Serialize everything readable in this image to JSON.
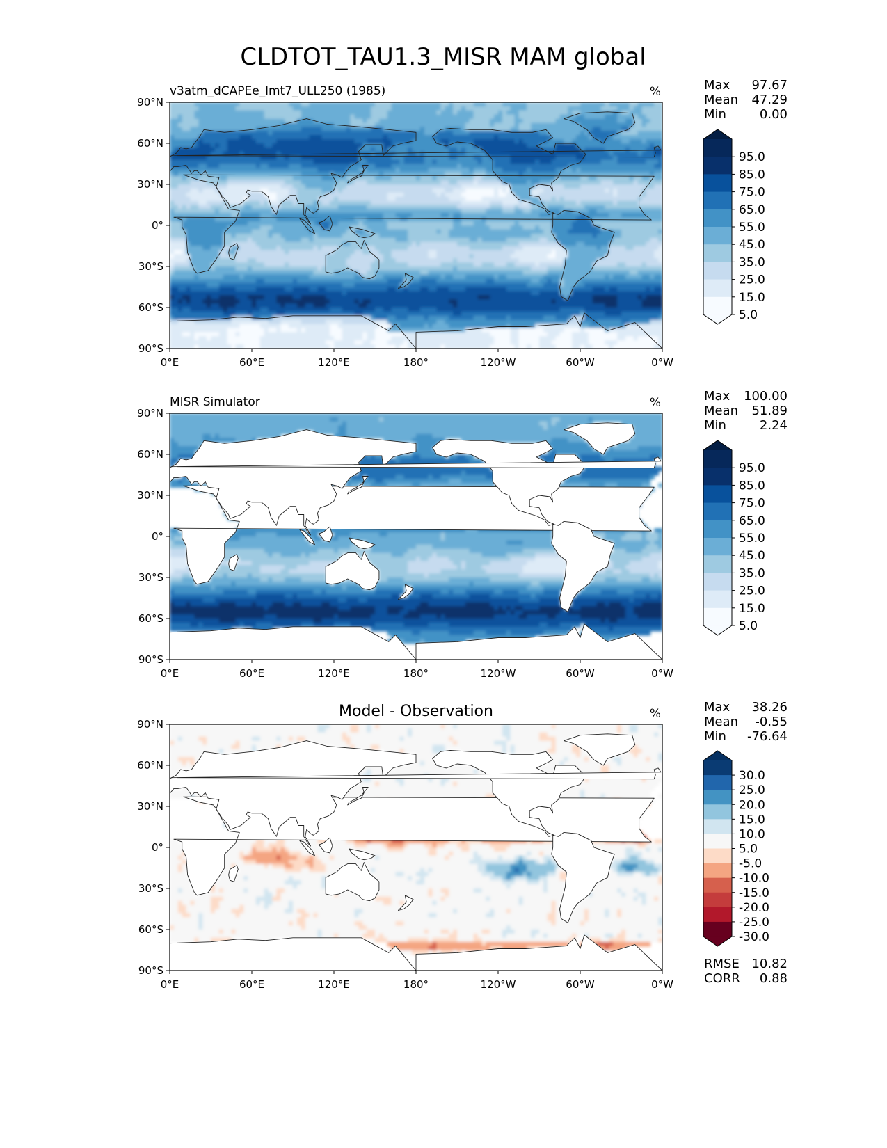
{
  "figure": {
    "title": "CLDTOT_TAU1.3_MISR MAM global"
  },
  "colors": {
    "blues": [
      "#f7fbff",
      "#deebf7",
      "#c6dbef",
      "#9ecae1",
      "#6baed6",
      "#4292c6",
      "#2171b5",
      "#08519c",
      "#08306b",
      "#06285a",
      "#041e44"
    ],
    "div": [
      "#67001f",
      "#b2182b",
      "#d6604d",
      "#f4a582",
      "#fddbc7",
      "#f7f7f7",
      "#d1e5f0",
      "#92c5de",
      "#4393c3",
      "#2166ac",
      "#053061"
    ],
    "land": "#ffffff",
    "coast": "#222222"
  },
  "chart_data": [
    {
      "type": "heatmap",
      "panel": "model",
      "title": "",
      "left_title": "v3atm_dCAPEe_lmt7_ULL250 (1985)",
      "units": "%",
      "stats": {
        "max_label": "Max",
        "max": "97.67",
        "mean_label": "Mean",
        "mean": "47.29",
        "min_label": "Min",
        "min": "0.00"
      },
      "colorbar": {
        "extend": "both",
        "labels": [
          "95.0",
          "85.0",
          "75.0",
          "65.0",
          "55.0",
          "45.0",
          "35.0",
          "25.0",
          "15.0",
          "5.0"
        ]
      },
      "xticks": [
        "0°E",
        "60°E",
        "120°E",
        "180°",
        "120°W",
        "60°W",
        "0°W"
      ],
      "yticks": [
        "90°N",
        "60°N",
        "30°N",
        "0°",
        "30°S",
        "60°S",
        "90°S"
      ],
      "xlim": [
        0,
        360
      ],
      "ylim": [
        -90,
        90
      ],
      "field": "model"
    },
    {
      "type": "heatmap",
      "panel": "obs",
      "title": "",
      "left_title": "MISR Simulator",
      "units": "%",
      "stats": {
        "max_label": "Max",
        "max": "100.00",
        "mean_label": "Mean",
        "mean": "51.89",
        "min_label": "Min",
        "min": "2.24"
      },
      "colorbar": {
        "extend": "both",
        "labels": [
          "95.0",
          "85.0",
          "75.0",
          "65.0",
          "55.0",
          "45.0",
          "35.0",
          "25.0",
          "15.0",
          "5.0"
        ]
      },
      "xticks": [
        "0°E",
        "60°E",
        "120°E",
        "180°",
        "120°W",
        "60°W",
        "0°W"
      ],
      "yticks": [
        "90°N",
        "60°N",
        "30°N",
        "0°",
        "30°S",
        "60°S",
        "90°S"
      ],
      "xlim": [
        0,
        360
      ],
      "ylim": [
        -90,
        90
      ],
      "field": "obs"
    },
    {
      "type": "heatmap",
      "panel": "diff",
      "title": "Model - Observation",
      "left_title": "",
      "units": "%",
      "stats": {
        "max_label": "Max",
        "max": "38.26",
        "mean_label": "Mean",
        "mean": "-0.55",
        "min_label": "Min",
        "min": "-76.64"
      },
      "extra_stats": {
        "rmse_label": "RMSE",
        "rmse": "10.82",
        "corr_label": "CORR",
        "corr": "0.88"
      },
      "colorbar": {
        "extend": "both",
        "labels": [
          "30.0",
          "25.0",
          "20.0",
          "15.0",
          "10.0",
          "5.0",
          "-5.0",
          "-10.0",
          "-15.0",
          "-20.0",
          "-25.0",
          "-30.0"
        ]
      },
      "xticks": [
        "0°E",
        "60°E",
        "120°E",
        "180°",
        "120°W",
        "60°W",
        "0°W"
      ],
      "yticks": [
        "90°N",
        "60°N",
        "30°N",
        "0°",
        "30°S",
        "60°S",
        "90°S"
      ],
      "xlim": [
        0,
        360
      ],
      "ylim": [
        -90,
        90
      ],
      "field": "diff"
    }
  ],
  "continents": [
    {
      "name": "africa",
      "poly": [
        [
          -17,
          21
        ],
        [
          -10,
          30
        ],
        [
          -6,
          36
        ],
        [
          10,
          37
        ],
        [
          22,
          33
        ],
        [
          32,
          31
        ],
        [
          34,
          28
        ],
        [
          43,
          12
        ],
        [
          51,
          11
        ],
        [
          48,
          3
        ],
        [
          40,
          -5
        ],
        [
          40,
          -15
        ],
        [
          35,
          -23
        ],
        [
          33,
          -26
        ],
        [
          28,
          -33
        ],
        [
          20,
          -35
        ],
        [
          18,
          -33
        ],
        [
          13,
          -20
        ],
        [
          12,
          -7
        ],
        [
          9,
          -1
        ],
        [
          9,
          4
        ],
        [
          3,
          6
        ],
        [
          -8,
          4
        ],
        [
          -13,
          8
        ],
        [
          -17,
          14
        ]
      ]
    },
    {
      "name": "eurasia",
      "poly": [
        [
          -10,
          36
        ],
        [
          -9,
          43
        ],
        [
          -2,
          44
        ],
        [
          -4,
          48
        ],
        [
          5,
          53
        ],
        [
          8,
          57
        ],
        [
          12,
          56
        ],
        [
          16,
          57
        ],
        [
          18,
          60
        ],
        [
          22,
          65
        ],
        [
          25,
          70
        ],
        [
          40,
          68
        ],
        [
          60,
          70
        ],
        [
          80,
          73
        ],
        [
          100,
          78
        ],
        [
          115,
          74
        ],
        [
          140,
          72
        ],
        [
          160,
          70
        ],
        [
          180,
          68
        ],
        [
          180,
          62
        ],
        [
          170,
          60
        ],
        [
          163,
          58
        ],
        [
          156,
          51
        ],
        [
          155,
          59
        ],
        [
          143,
          59
        ],
        [
          138,
          54
        ],
        [
          140,
          48
        ],
        [
          132,
          43
        ],
        [
          128,
          38
        ],
        [
          126,
          35
        ],
        [
          122,
          37
        ],
        [
          118,
          38
        ],
        [
          122,
          31
        ],
        [
          120,
          26
        ],
        [
          116,
          23
        ],
        [
          110,
          21
        ],
        [
          108,
          17
        ],
        [
          109,
          12
        ],
        [
          105,
          9
        ],
        [
          103,
          10
        ],
        [
          100,
          13
        ],
        [
          99,
          8
        ],
        [
          103,
          1
        ],
        [
          101,
          3
        ],
        [
          98,
          8
        ],
        [
          98,
          16
        ],
        [
          94,
          16
        ],
        [
          92,
          22
        ],
        [
          88,
          22
        ],
        [
          86,
          20
        ],
        [
          80,
          15
        ],
        [
          78,
          8
        ],
        [
          74,
          14
        ],
        [
          72,
          21
        ],
        [
          67,
          25
        ],
        [
          60,
          25
        ],
        [
          57,
          26
        ],
        [
          56,
          24
        ],
        [
          59,
          22
        ],
        [
          52,
          16
        ],
        [
          44,
          13
        ],
        [
          43,
          16
        ],
        [
          38,
          22
        ],
        [
          34,
          28
        ],
        [
          36,
          35
        ],
        [
          28,
          36
        ],
        [
          26,
          40
        ],
        [
          23,
          37
        ],
        [
          20,
          40
        ],
        [
          18,
          40
        ],
        [
          16,
          38
        ],
        [
          12,
          44
        ],
        [
          6,
          43
        ],
        [
          3,
          43
        ],
        [
          -2,
          37
        ]
      ]
    },
    {
      "name": "north-america",
      "poly": [
        [
          -168,
          65
        ],
        [
          -162,
          70
        ],
        [
          -155,
          71
        ],
        [
          -140,
          70
        ],
        [
          -125,
          70
        ],
        [
          -110,
          68
        ],
        [
          -95,
          68
        ],
        [
          -85,
          70
        ],
        [
          -80,
          64
        ],
        [
          -92,
          58
        ],
        [
          -80,
          52
        ],
        [
          -78,
          60
        ],
        [
          -64,
          60
        ],
        [
          -56,
          52
        ],
        [
          -60,
          46
        ],
        [
          -67,
          44
        ],
        [
          -70,
          42
        ],
        [
          -74,
          40
        ],
        [
          -76,
          35
        ],
        [
          -81,
          31
        ],
        [
          -80,
          25
        ],
        [
          -82,
          29
        ],
        [
          -90,
          30
        ],
        [
          -97,
          27
        ],
        [
          -97,
          22
        ],
        [
          -90,
          21
        ],
        [
          -88,
          16
        ],
        [
          -84,
          11
        ],
        [
          -79,
          9
        ],
        [
          -83,
          8
        ],
        [
          -86,
          12
        ],
        [
          -92,
          15
        ],
        [
          -105,
          19
        ],
        [
          -110,
          24
        ],
        [
          -112,
          30
        ],
        [
          -117,
          32
        ],
        [
          -124,
          40
        ],
        [
          -124,
          48
        ],
        [
          -130,
          55
        ],
        [
          -140,
          60
        ],
        [
          -150,
          61
        ],
        [
          -158,
          58
        ],
        [
          -165,
          60
        ]
      ]
    },
    {
      "name": "greenland",
      "poly": [
        [
          -72,
          78
        ],
        [
          -60,
          82
        ],
        [
          -40,
          83
        ],
        [
          -22,
          82
        ],
        [
          -20,
          75
        ],
        [
          -25,
          70
        ],
        [
          -40,
          65
        ],
        [
          -43,
          60
        ],
        [
          -50,
          64
        ],
        [
          -55,
          70
        ],
        [
          -65,
          76
        ]
      ]
    },
    {
      "name": "south-america",
      "poly": [
        [
          -80,
          9
        ],
        [
          -76,
          8
        ],
        [
          -72,
          11
        ],
        [
          -62,
          10
        ],
        [
          -52,
          5
        ],
        [
          -50,
          0
        ],
        [
          -44,
          -2
        ],
        [
          -35,
          -5
        ],
        [
          -38,
          -13
        ],
        [
          -40,
          -22
        ],
        [
          -48,
          -26
        ],
        [
          -53,
          -34
        ],
        [
          -58,
          -38
        ],
        [
          -62,
          -41
        ],
        [
          -65,
          -45
        ],
        [
          -67,
          -50
        ],
        [
          -69,
          -55
        ],
        [
          -74,
          -52
        ],
        [
          -75,
          -45
        ],
        [
          -73,
          -37
        ],
        [
          -71,
          -29
        ],
        [
          -70,
          -18
        ],
        [
          -76,
          -13
        ],
        [
          -81,
          -5
        ],
        [
          -80,
          0
        ]
      ]
    },
    {
      "name": "australia",
      "poly": [
        [
          114,
          -22
        ],
        [
          114,
          -34
        ],
        [
          118,
          -35
        ],
        [
          124,
          -34
        ],
        [
          130,
          -31
        ],
        [
          136,
          -34
        ],
        [
          138,
          -35
        ],
        [
          141,
          -38
        ],
        [
          146,
          -39
        ],
        [
          150,
          -37
        ],
        [
          153,
          -31
        ],
        [
          153,
          -25
        ],
        [
          146,
          -19
        ],
        [
          142,
          -11
        ],
        [
          140,
          -17
        ],
        [
          136,
          -12
        ],
        [
          130,
          -12
        ],
        [
          126,
          -14
        ],
        [
          122,
          -18
        ]
      ]
    },
    {
      "name": "antarctica",
      "poly": [
        [
          -180,
          -90
        ],
        [
          180,
          -90
        ],
        [
          180,
          -78
        ],
        [
          160,
          -77
        ],
        [
          165,
          -72
        ],
        [
          140,
          -66
        ],
        [
          110,
          -66
        ],
        [
          90,
          -66
        ],
        [
          70,
          -68
        ],
        [
          50,
          -67
        ],
        [
          30,
          -69
        ],
        [
          0,
          -70
        ],
        [
          -20,
          -71
        ],
        [
          -40,
          -77
        ],
        [
          -60,
          -74
        ],
        [
          -57,
          -64
        ],
        [
          -64,
          -66
        ],
        [
          -70,
          -72
        ],
        [
          -100,
          -74
        ],
        [
          -120,
          -74
        ],
        [
          -150,
          -77
        ],
        [
          -180,
          -78
        ]
      ]
    },
    {
      "name": "borneo",
      "poly": [
        [
          109,
          2
        ],
        [
          113,
          -3
        ],
        [
          117,
          -4
        ],
        [
          119,
          1
        ],
        [
          117,
          7
        ],
        [
          112,
          3
        ]
      ]
    },
    {
      "name": "sumatra",
      "poly": [
        [
          95,
          5
        ],
        [
          98,
          4
        ],
        [
          104,
          -2
        ],
        [
          106,
          -6
        ],
        [
          102,
          -4
        ],
        [
          98,
          1
        ]
      ]
    },
    {
      "name": "new-guinea",
      "poly": [
        [
          131,
          -1
        ],
        [
          141,
          -3
        ],
        [
          150,
          -6
        ],
        [
          147,
          -8
        ],
        [
          142,
          -9
        ],
        [
          138,
          -8
        ],
        [
          133,
          -4
        ]
      ]
    },
    {
      "name": "madagascar",
      "poly": [
        [
          44,
          -16
        ],
        [
          49,
          -13
        ],
        [
          50,
          -16
        ],
        [
          47,
          -25
        ],
        [
          44,
          -24
        ],
        [
          43,
          -20
        ]
      ]
    },
    {
      "name": "japan",
      "poly": [
        [
          130,
          31
        ],
        [
          135,
          34
        ],
        [
          140,
          36
        ],
        [
          142,
          40
        ],
        [
          141,
          44
        ],
        [
          145,
          44
        ],
        [
          140,
          38
        ],
        [
          135,
          35
        ],
        [
          131,
          33
        ]
      ]
    },
    {
      "name": "uk",
      "poly": [
        [
          -6,
          50
        ],
        [
          1,
          51
        ],
        [
          -1,
          55
        ],
        [
          -3,
          58
        ],
        [
          -6,
          57
        ],
        [
          -5,
          53
        ]
      ]
    },
    {
      "name": "new-zealand",
      "poly": [
        [
          172,
          -35
        ],
        [
          178,
          -38
        ],
        [
          175,
          -42
        ],
        [
          171,
          -45
        ],
        [
          167,
          -46
        ],
        [
          173,
          -40
        ]
      ]
    },
    {
      "name": "arabia-fill",
      "poly": [
        [
          34,
          28
        ],
        [
          38,
          22
        ],
        [
          43,
          16
        ],
        [
          44,
          13
        ],
        [
          52,
          16
        ],
        [
          59,
          22
        ],
        [
          56,
          24
        ],
        [
          50,
          28
        ],
        [
          48,
          30
        ],
        [
          44,
          32
        ],
        [
          36,
          33
        ]
      ]
    }
  ]
}
